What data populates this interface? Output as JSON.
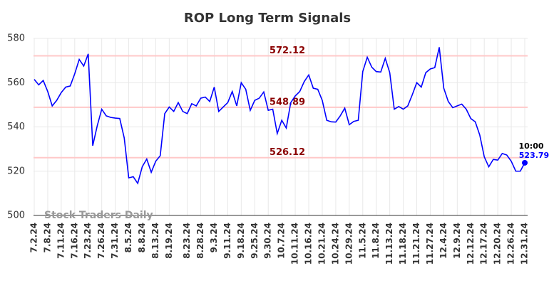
{
  "chart_data": {
    "type": "line",
    "title": "ROP Long Term Signals",
    "categories": [
      "7.2.24",
      null,
      null,
      "7.8.24",
      null,
      null,
      "7.11.24",
      null,
      null,
      "7.16.24",
      null,
      null,
      "7.23.24",
      null,
      null,
      "7.26.24",
      null,
      null,
      "7.31.24",
      null,
      null,
      "8.5.24",
      null,
      null,
      "8.8.24",
      null,
      null,
      "8.13.24",
      null,
      null,
      "8.19.24",
      null,
      null,
      null,
      "8.23.24",
      null,
      null,
      "8.28.24",
      null,
      null,
      "9.3.24",
      null,
      null,
      "9.11.24",
      null,
      null,
      "9.18.24",
      null,
      null,
      "9.25.24",
      null,
      null,
      "9.30.24",
      null,
      null,
      "10.7.24",
      null,
      null,
      "10.11.24",
      null,
      null,
      "10.16.24",
      null,
      null,
      "10.21.24",
      null,
      null,
      "10.24.24",
      null,
      null,
      "10.29.24",
      null,
      null,
      "11.5.24",
      null,
      null,
      "11.8.24",
      null,
      null,
      "11.13.24",
      null,
      null,
      "11.18.24",
      null,
      null,
      "11.21.24",
      null,
      null,
      "11.27.24",
      null,
      null,
      "12.4.24",
      null,
      null,
      "12.9.24",
      null,
      null,
      "12.12.24",
      null,
      null,
      "12.17.24",
      null,
      null,
      "12.20.24",
      null,
      null,
      "12.26.24",
      null,
      null,
      "12.31.24"
    ],
    "values": [
      561.5,
      559,
      561,
      556,
      549.5,
      552,
      555.5,
      558,
      558.5,
      564,
      570.5,
      567.5,
      573,
      531.5,
      540.5,
      548,
      545,
      544.3,
      544,
      543.8,
      535,
      517,
      517.5,
      514.5,
      522,
      525.5,
      519.5,
      524.5,
      527,
      546,
      549,
      547,
      551,
      547,
      546,
      550.5,
      549.5,
      553,
      553.5,
      551.5,
      558,
      547,
      549,
      551,
      556,
      549.5,
      560,
      557,
      547.5,
      552,
      553,
      555.8,
      547.5,
      548,
      537,
      543,
      539.5,
      551,
      554,
      556,
      560.5,
      563.5,
      557.5,
      557,
      552,
      543,
      542.3,
      542.2,
      545,
      548.5,
      541,
      542.5,
      543,
      565,
      571.5,
      567,
      565,
      564.8,
      571,
      564.5,
      548,
      549.2,
      548,
      549.5,
      554.5,
      560,
      558,
      564.5,
      566.2,
      566.8,
      576,
      557.5,
      551.5,
      548.7,
      549.5,
      550.3,
      548,
      543.8,
      542.3,
      536.3,
      526.5,
      522,
      525.3,
      525,
      528,
      527.3,
      524.5,
      520,
      520,
      523.79
    ],
    "color": "#0000ff",
    "hlines": [
      572.12,
      548.89,
      526.12
    ],
    "hline_color": "#ffc8c8",
    "hline_label_color": "#8b0000",
    "annotation": "10:00",
    "watermark": "Stock Traders Daily",
    "ylim": [
      500,
      580
    ],
    "yticks": [
      500,
      520,
      540,
      560,
      580
    ],
    "grid": true
  }
}
